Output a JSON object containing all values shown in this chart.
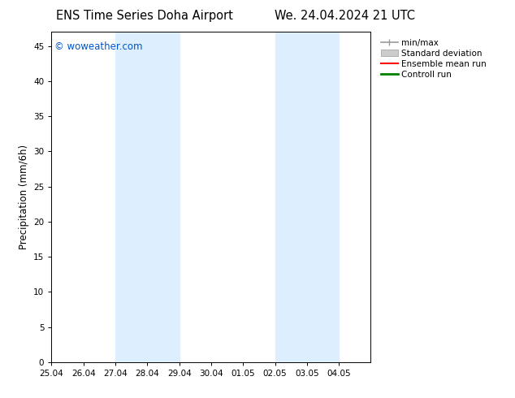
{
  "title_left": "ENS Time Series Doha Airport",
  "title_right": "We. 24.04.2024 21 UTC",
  "ylabel": "Precipitation (mm/6h)",
  "watermark": "© woweather.com",
  "xlim_start": 0,
  "xlim_end": 10,
  "ylim": [
    0,
    47
  ],
  "yticks": [
    0,
    5,
    10,
    15,
    20,
    25,
    30,
    35,
    40,
    45
  ],
  "xtick_labels": [
    "25.04",
    "26.04",
    "27.04",
    "28.04",
    "29.04",
    "30.04",
    "01.05",
    "02.05",
    "03.05",
    "04.05"
  ],
  "shaded_regions": [
    {
      "x_start": 2.0,
      "x_end": 3.0,
      "color": "#ddeeff"
    },
    {
      "x_start": 3.0,
      "x_end": 4.0,
      "color": "#ddeeff"
    },
    {
      "x_start": 7.0,
      "x_end": 8.0,
      "color": "#ddeeff"
    },
    {
      "x_start": 8.0,
      "x_end": 9.0,
      "color": "#ddeeff"
    }
  ],
  "legend_entries": [
    {
      "label": "min/max",
      "color": "#999999",
      "lw": 1.2
    },
    {
      "label": "Standard deviation",
      "color": "#cccccc",
      "lw": 6
    },
    {
      "label": "Ensemble mean run",
      "color": "red",
      "lw": 1.5
    },
    {
      "label": "Controll run",
      "color": "green",
      "lw": 2
    }
  ],
  "bg_color": "#ffffff",
  "watermark_color": "#0055cc",
  "title_fontsize": 10.5,
  "axis_fontsize": 8.5,
  "tick_fontsize": 7.5,
  "legend_fontsize": 7.5
}
